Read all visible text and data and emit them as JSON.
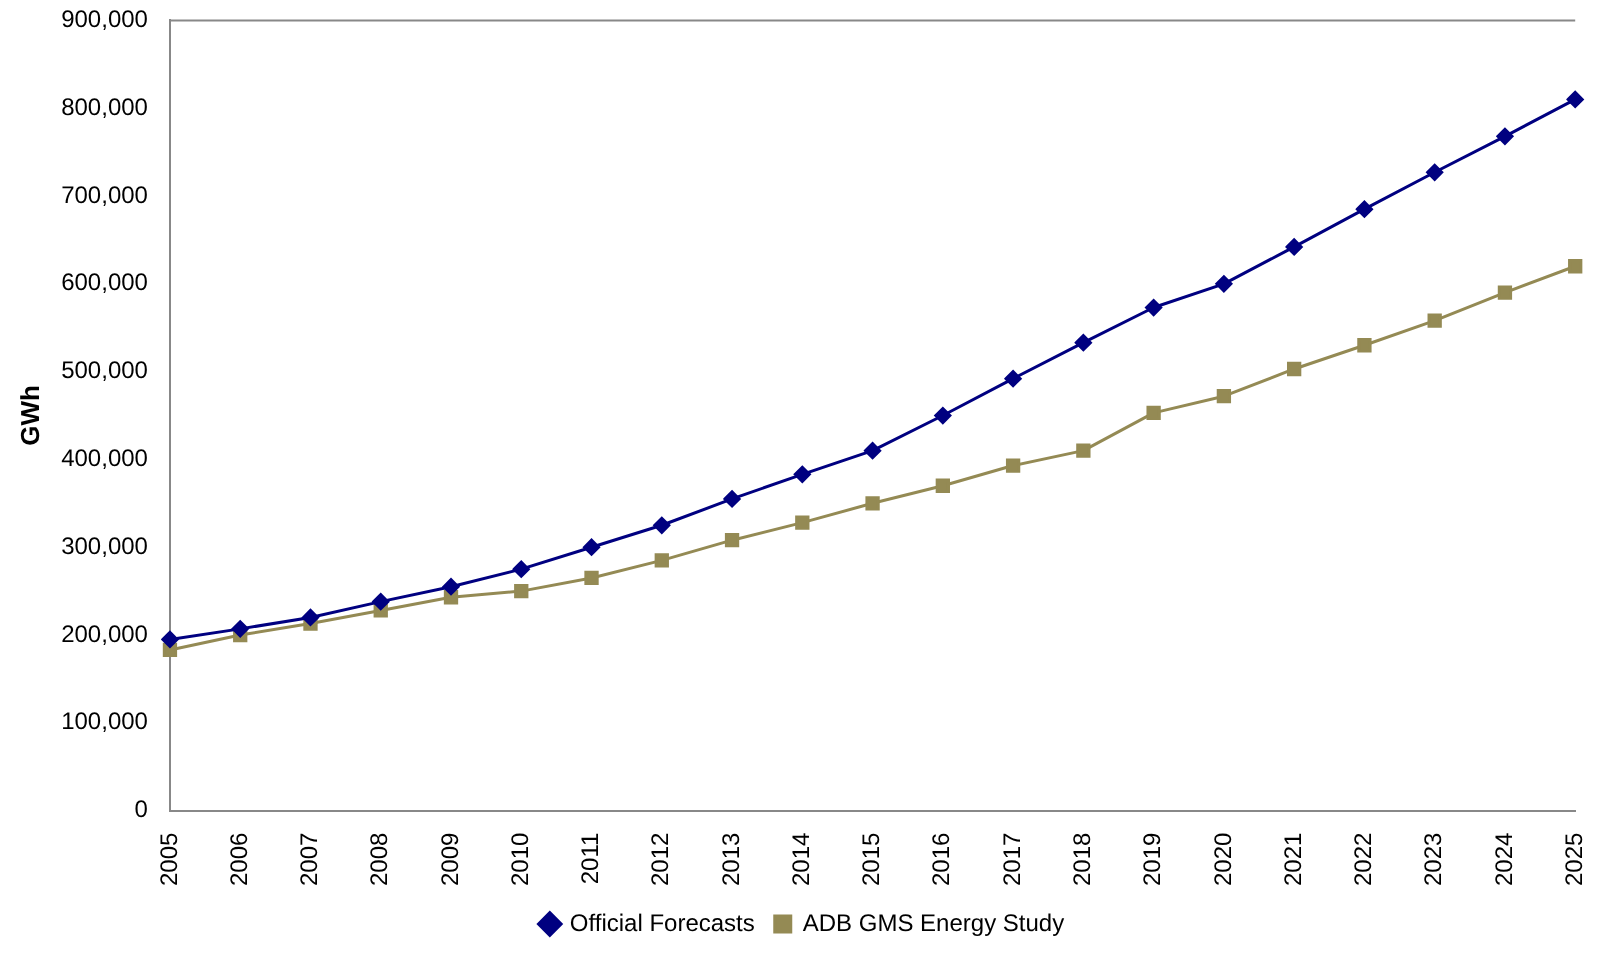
{
  "chart_data": {
    "type": "line",
    "ylabel": "GWh",
    "categories": [
      "2005",
      "2006",
      "2007",
      "2008",
      "2009",
      "2010",
      "2011",
      "2012",
      "2013",
      "2014",
      "2015",
      "2016",
      "2017",
      "2018",
      "2019",
      "2020",
      "2021",
      "2022",
      "2023",
      "2024",
      "2025"
    ],
    "series": [
      {
        "name": "Official Forecasts",
        "color": "#000080",
        "marker": "diamond",
        "values": [
          195000,
          207000,
          220000,
          238000,
          255000,
          275000,
          300000,
          325000,
          355000,
          383000,
          410000,
          450000,
          492000,
          533000,
          573000,
          600000,
          642000,
          685000,
          727000,
          768000,
          810000
        ]
      },
      {
        "name": "ADB GMS Energy Study",
        "color": "#948a54",
        "marker": "square",
        "values": [
          183000,
          200000,
          213000,
          228000,
          243000,
          250000,
          265000,
          285000,
          308000,
          328000,
          350000,
          370000,
          393000,
          410000,
          453000,
          472000,
          503000,
          530000,
          558000,
          590000,
          620000
        ]
      }
    ],
    "ylim": [
      0,
      900000
    ],
    "yticks": [
      0,
      {
        "value": 100000,
        "label": "100,000"
      },
      {
        "value": 200000,
        "label": "200,000"
      },
      {
        "value": 300000,
        "label": "300,000"
      },
      {
        "value": 400000,
        "label": "400,000"
      },
      {
        "value": 500000,
        "label": "500,000"
      },
      {
        "value": 600000,
        "label": "600,000"
      },
      {
        "value": 700000,
        "label": "700,000"
      },
      {
        "value": 800000,
        "label": "800,000"
      },
      {
        "value": 900000,
        "label": "900,000"
      }
    ],
    "grid": false,
    "legend": "bottom",
    "line_style": "solid"
  }
}
